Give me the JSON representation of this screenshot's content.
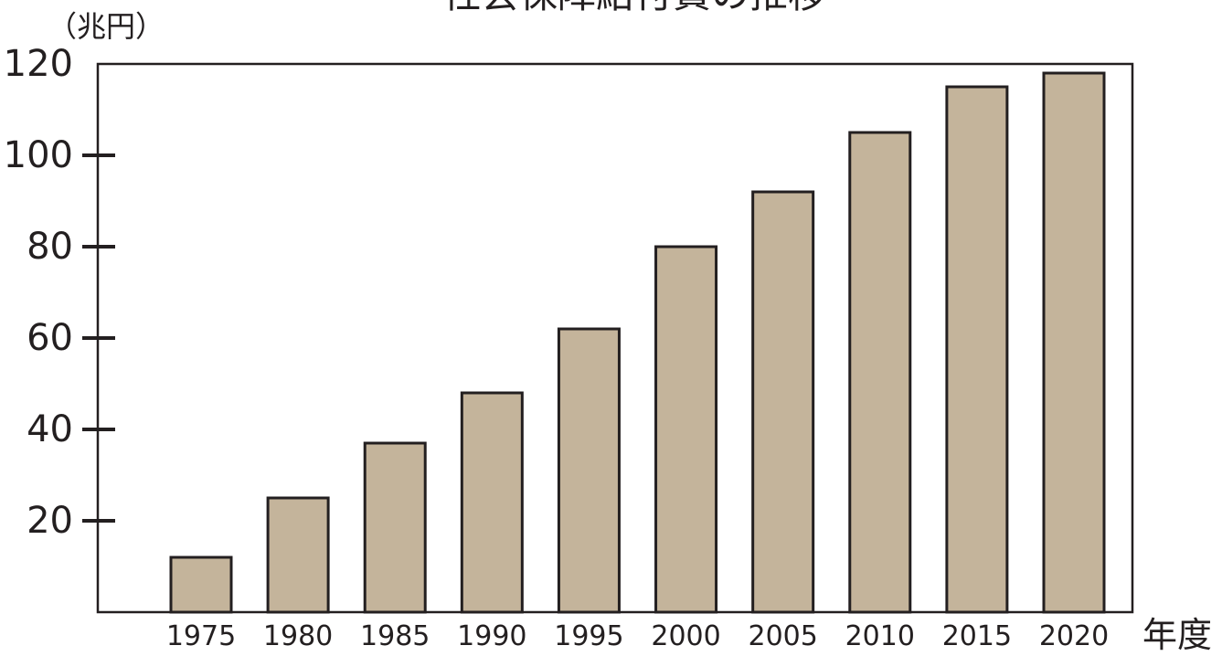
{
  "chart_data": {
    "type": "bar",
    "title": "社会保障給付費の推移",
    "ylabel": "（兆円）",
    "xlabel": "年度",
    "categories": [
      "1975",
      "1980",
      "1985",
      "1990",
      "1995",
      "2000",
      "2005",
      "2010",
      "2015",
      "2020"
    ],
    "values": [
      12,
      25,
      37,
      48,
      62,
      80,
      92,
      105,
      115,
      118
    ],
    "ylim": [
      0,
      120
    ],
    "y_ticks": [
      20,
      40,
      60,
      80,
      100,
      120
    ],
    "grid": false,
    "bar_color": "#c4b49b",
    "edge_color": "#231f20"
  }
}
